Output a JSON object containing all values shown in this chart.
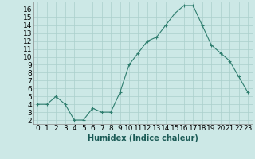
{
  "xlabel": "Humidex (Indice chaleur)",
  "ylabel": "",
  "x": [
    0,
    1,
    2,
    3,
    4,
    5,
    6,
    7,
    8,
    9,
    10,
    11,
    12,
    13,
    14,
    15,
    16,
    17,
    18,
    19,
    20,
    21,
    22,
    23
  ],
  "y": [
    4,
    4,
    5,
    4,
    2,
    2,
    3.5,
    3,
    3,
    5.5,
    9,
    10.5,
    12,
    12.5,
    14,
    15.5,
    16.5,
    16.5,
    14,
    11.5,
    10.5,
    9.5,
    7.5,
    5.5
  ],
  "line_color": "#2e7d6e",
  "marker": "+",
  "marker_color": "#2e7d6e",
  "bg_color": "#cce8e6",
  "grid_color": "#aacfcc",
  "xlim": [
    -0.5,
    23.5
  ],
  "ylim": [
    1.5,
    17.0
  ],
  "yticks": [
    2,
    3,
    4,
    5,
    6,
    7,
    8,
    9,
    10,
    11,
    12,
    13,
    14,
    15,
    16
  ],
  "xticks": [
    0,
    1,
    2,
    3,
    4,
    5,
    6,
    7,
    8,
    9,
    10,
    11,
    12,
    13,
    14,
    15,
    16,
    17,
    18,
    19,
    20,
    21,
    22,
    23
  ],
  "xtick_labels": [
    "0",
    "1",
    "2",
    "3",
    "4",
    "5",
    "6",
    "7",
    "8",
    "9",
    "10",
    "11",
    "12",
    "13",
    "14",
    "15",
    "16",
    "17",
    "18",
    "19",
    "20",
    "21",
    "22",
    "23"
  ],
  "label_fontsize": 7,
  "tick_fontsize": 6.5
}
